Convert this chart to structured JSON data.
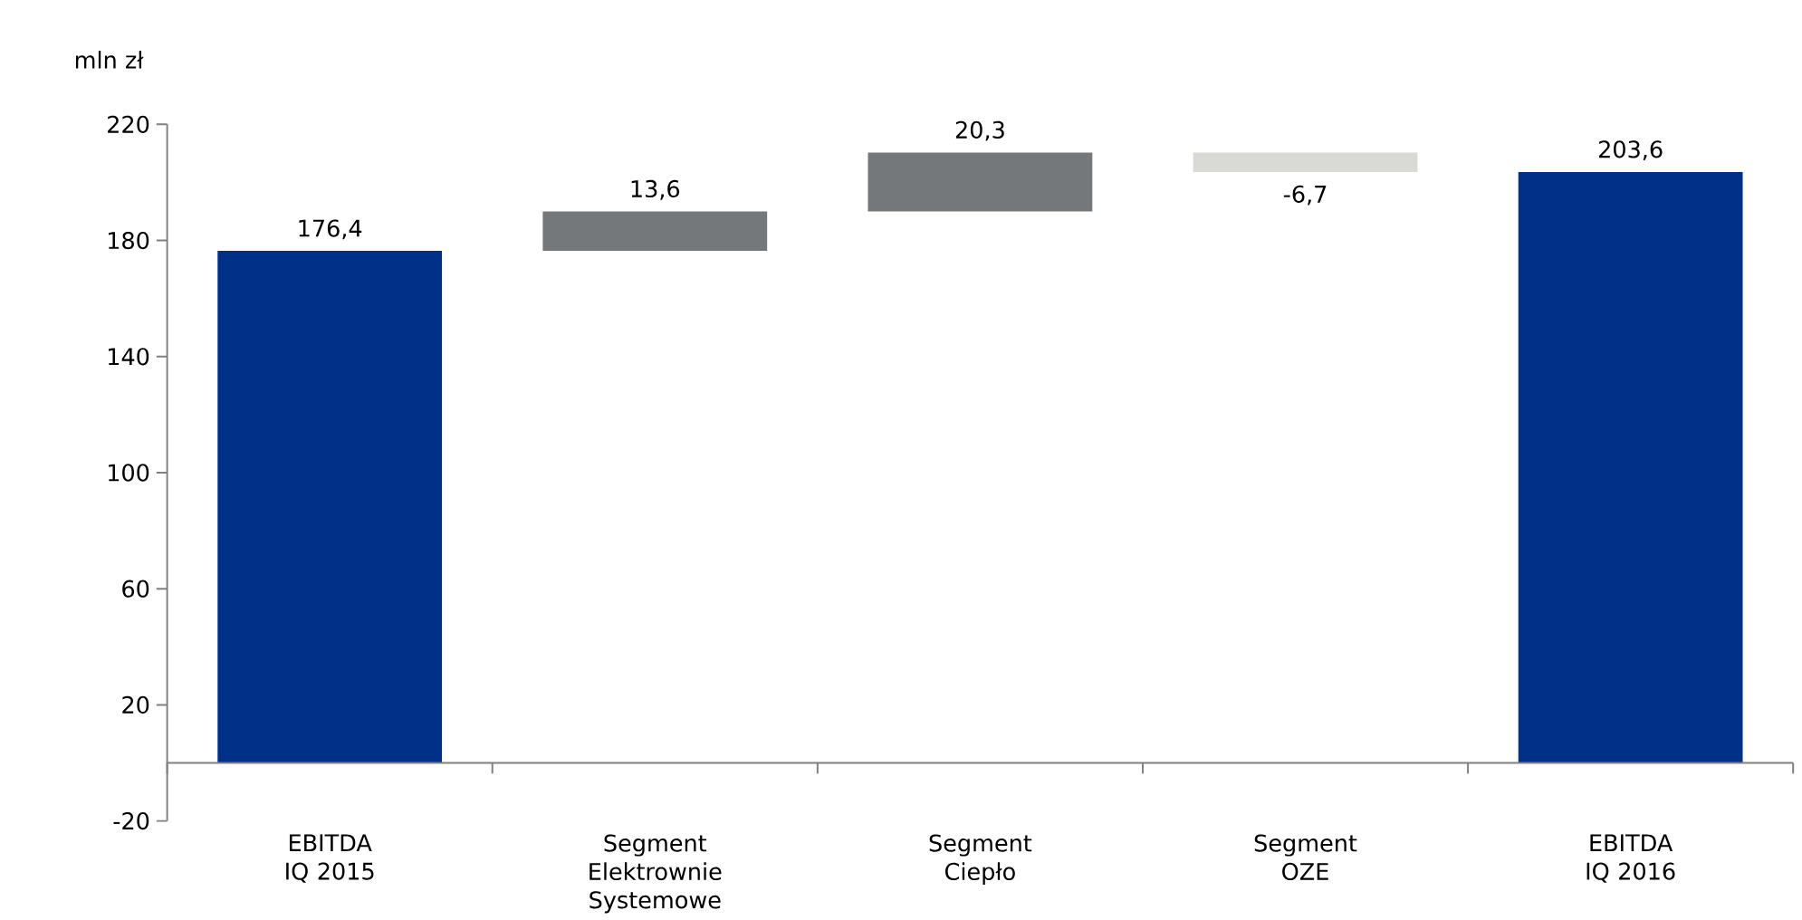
{
  "chart_data": {
    "type": "bar",
    "ylabel": "mln zł",
    "categories": [
      "EBITDA IQ 2015",
      "Segment Elektrownie Systemowe",
      "Segment Ciepło",
      "Segment OZE",
      "EBITDA IQ 2016"
    ],
    "values": [
      176.4,
      13.6,
      20.3,
      -6.7,
      203.6
    ],
    "base": [
      0,
      176.4,
      190,
      210.3,
      0
    ],
    "colors": [
      "#003087",
      "#75787b",
      "#75787b",
      "#d9d9d6",
      "#003087"
    ],
    "value_labels": [
      "176,4",
      "13,6",
      "20,3",
      "-6,7",
      "203,6"
    ],
    "ylim": [
      -20,
      220
    ],
    "yticks": [
      -20,
      20,
      60,
      100,
      140,
      180,
      220
    ],
    "grid": false
  }
}
